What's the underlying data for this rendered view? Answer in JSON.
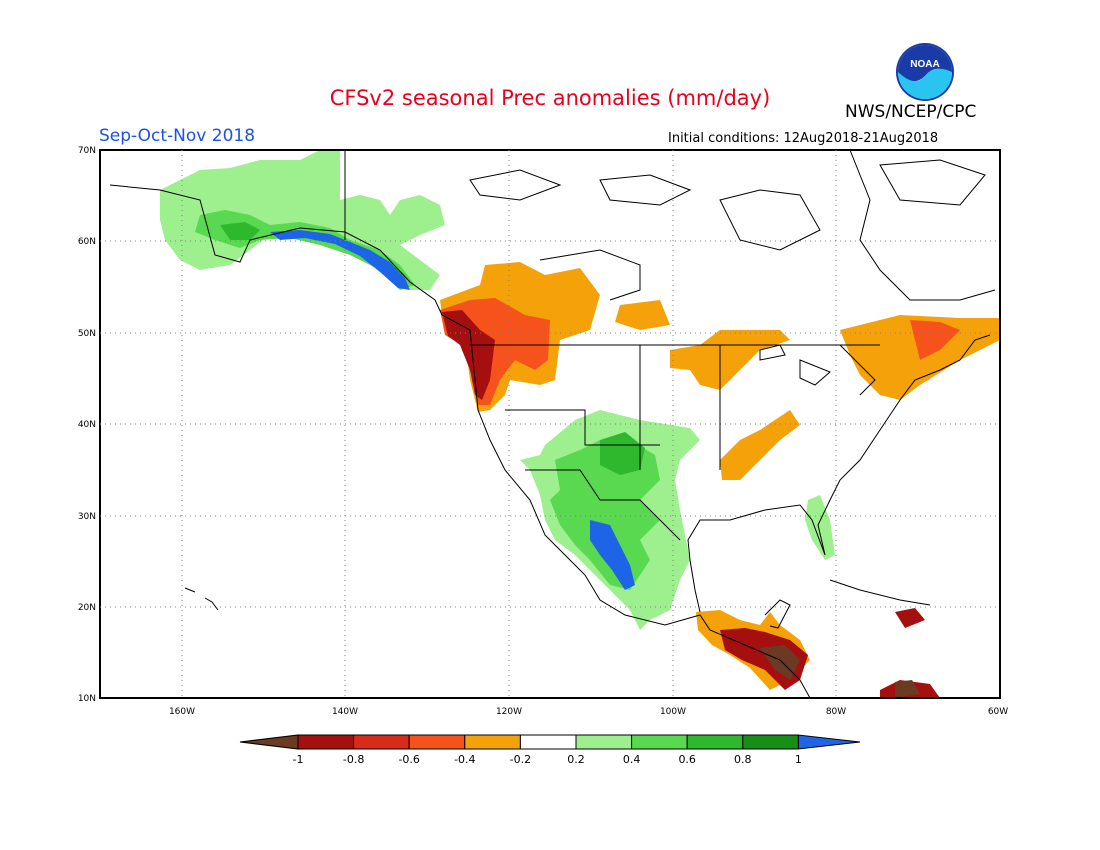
{
  "header": {
    "title": "CFSv2 seasonal Prec anomalies (mm/day)",
    "season": "Sep-Oct-Nov 2018",
    "initial_conditions": "Initial conditions: 12Aug2018-21Aug2018",
    "organization": "NWS/NCEP/CPC",
    "logo_text": "NOAA"
  },
  "axes": {
    "lat_labels": [
      "70N",
      "60N",
      "50N",
      "40N",
      "30N",
      "20N",
      "10N"
    ],
    "lon_labels": [
      "160W",
      "140W",
      "120W",
      "100W",
      "80W",
      "60W"
    ]
  },
  "colorbar": {
    "colors": [
      "#6b3a22",
      "#a50f0f",
      "#d92b1a",
      "#f5531b",
      "#f5a20a",
      "#ffffff",
      "#9ef08f",
      "#58d950",
      "#2eb82e",
      "#168f16",
      "#1e64e6"
    ],
    "tick_labels": [
      "-1",
      "-0.8",
      "-0.6",
      "-0.4",
      "-0.2",
      "0.2",
      "0.4",
      "0.6",
      "0.8",
      "1"
    ]
  }
}
